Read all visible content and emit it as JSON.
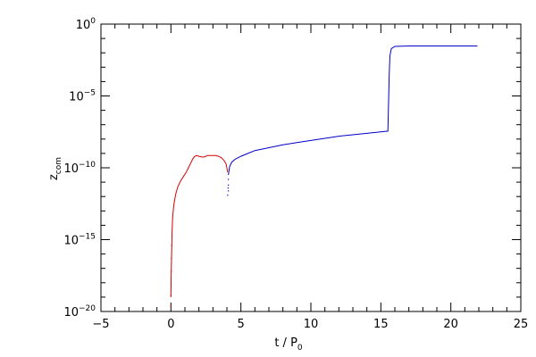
{
  "chart_data": {
    "type": "line",
    "title": "",
    "xlabel": "t / P",
    "xlabel_sub": "0",
    "ylabel": "z",
    "ylabel_sub": "com",
    "yscale": "log",
    "xlim": [
      -5,
      25
    ],
    "ylim_exponent": [
      -20,
      0
    ],
    "grid": false,
    "legend": "none",
    "x_major_ticks": [
      {
        "value": -5,
        "label": "−5"
      },
      {
        "value": 0,
        "label": "0"
      },
      {
        "value": 5,
        "label": "5"
      },
      {
        "value": 10,
        "label": "10"
      },
      {
        "value": 15,
        "label": "15"
      },
      {
        "value": 20,
        "label": "20"
      },
      {
        "value": 25,
        "label": "25"
      }
    ],
    "y_major_ticks": [
      {
        "exponent": 0,
        "base": "10",
        "exp_label": "0"
      },
      {
        "exponent": -5,
        "base": "10",
        "exp_label": "−5"
      },
      {
        "exponent": -10,
        "base": "10",
        "exp_label": "−10"
      },
      {
        "exponent": -15,
        "base": "10",
        "exp_label": "−15"
      },
      {
        "exponent": -20,
        "base": "10",
        "exp_label": "−20"
      }
    ],
    "series": [
      {
        "color": "#d40000",
        "points": [
          [
            0.0,
            -19.0
          ],
          [
            0.02,
            -17.5
          ],
          [
            0.05,
            -16.0
          ],
          [
            0.08,
            -14.5
          ],
          [
            0.12,
            -13.5
          ],
          [
            0.18,
            -12.8
          ],
          [
            0.25,
            -12.3
          ],
          [
            0.35,
            -11.8
          ],
          [
            0.5,
            -11.3
          ],
          [
            0.7,
            -10.9
          ],
          [
            0.9,
            -10.6
          ],
          [
            1.1,
            -10.3
          ],
          [
            1.25,
            -10.0
          ],
          [
            1.4,
            -9.7
          ],
          [
            1.55,
            -9.4
          ],
          [
            1.7,
            -9.2
          ],
          [
            1.85,
            -9.15
          ],
          [
            2.0,
            -9.2
          ],
          [
            2.2,
            -9.25
          ],
          [
            2.4,
            -9.25
          ],
          [
            2.6,
            -9.15
          ],
          [
            2.8,
            -9.15
          ],
          [
            3.0,
            -9.15
          ],
          [
            3.2,
            -9.15
          ],
          [
            3.4,
            -9.2
          ],
          [
            3.6,
            -9.3
          ],
          [
            3.8,
            -9.5
          ],
          [
            3.95,
            -9.75
          ],
          [
            4.05,
            -10.3
          ]
        ]
      },
      {
        "color": "#0000c8",
        "points": [
          [
            4.1,
            -10.5
          ],
          [
            4.2,
            -9.9
          ],
          [
            4.35,
            -9.6
          ],
          [
            4.6,
            -9.4
          ],
          [
            5.0,
            -9.2
          ],
          [
            5.5,
            -9.0
          ],
          [
            6.0,
            -8.8
          ],
          [
            7.0,
            -8.6
          ],
          [
            8.0,
            -8.4
          ],
          [
            9.0,
            -8.25
          ],
          [
            10.0,
            -8.1
          ],
          [
            11.0,
            -7.95
          ],
          [
            12.0,
            -7.8
          ],
          [
            13.0,
            -7.7
          ],
          [
            14.0,
            -7.6
          ],
          [
            15.0,
            -7.5
          ],
          [
            15.5,
            -7.45
          ],
          [
            15.6,
            -3.5
          ],
          [
            15.65,
            -2.2
          ],
          [
            15.75,
            -1.7
          ],
          [
            16.0,
            -1.55
          ],
          [
            17.0,
            -1.52
          ],
          [
            18.0,
            -1.52
          ],
          [
            19.0,
            -1.52
          ],
          [
            20.0,
            -1.52
          ],
          [
            21.0,
            -1.52
          ],
          [
            21.9,
            -1.52
          ]
        ]
      }
    ],
    "scatter_dots": [
      {
        "color": "#d40000",
        "points": [
          [
            0.0,
            -19.6
          ],
          [
            0.0,
            -18.9
          ],
          [
            0.01,
            -18.2
          ],
          [
            0.02,
            -17.2
          ],
          [
            0.03,
            -16.3
          ],
          [
            0.05,
            -15.4
          ]
        ]
      },
      {
        "color": "#0000c8",
        "points": [
          [
            4.1,
            -10.8
          ],
          [
            4.1,
            -11.2
          ],
          [
            4.1,
            -11.6
          ],
          [
            4.05,
            -11.9
          ],
          [
            4.08,
            -11.4
          ]
        ]
      }
    ]
  }
}
